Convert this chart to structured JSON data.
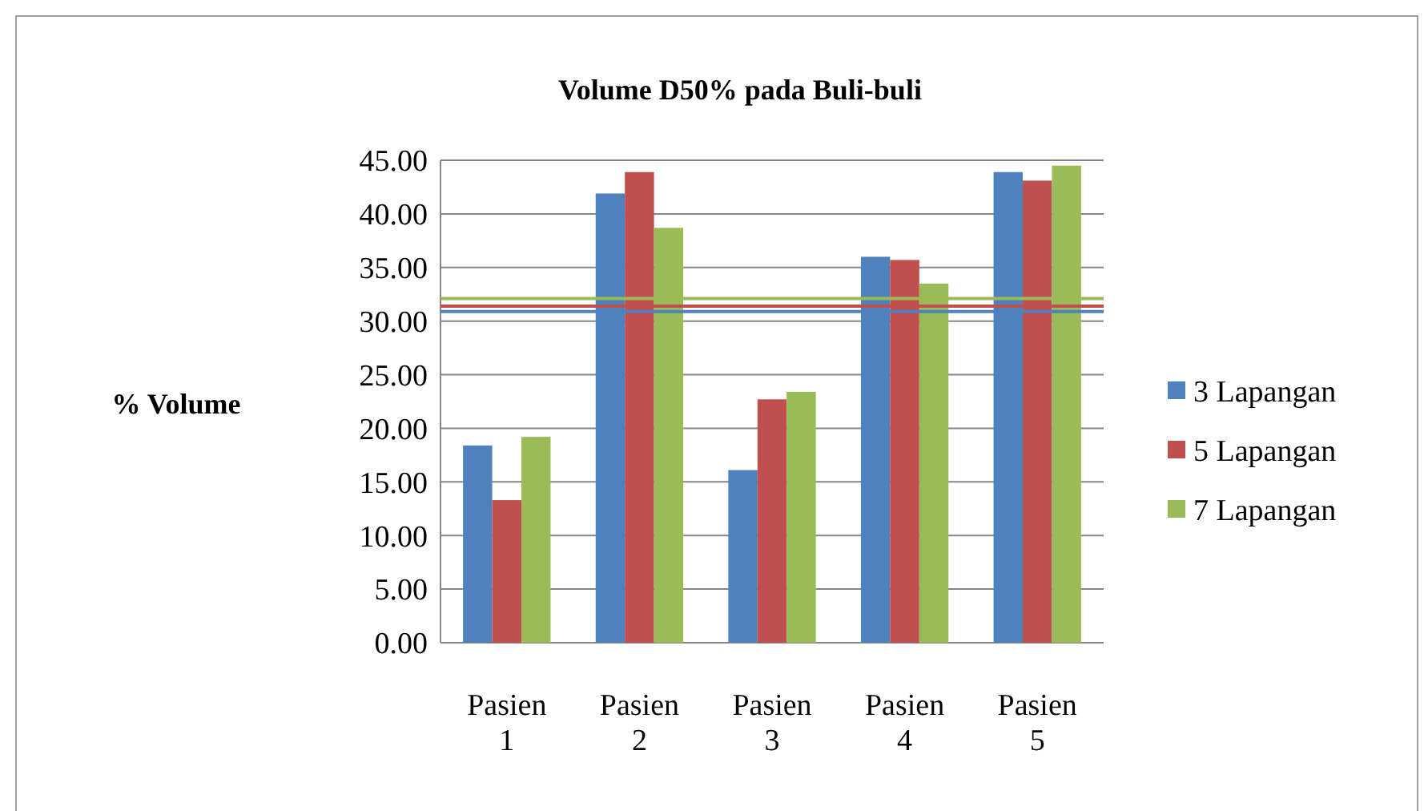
{
  "chart_data": {
    "type": "bar",
    "title": "Volume D50% pada Buli-buli",
    "ylabel": "% Volume",
    "categories": [
      "Pasien 1",
      "Pasien 2",
      "Pasien 3",
      "Pasien 4",
      "Pasien 5"
    ],
    "series": [
      {
        "name": "3 Lapangan",
        "color": "#4f81bd",
        "values": [
          18.4,
          41.9,
          16.1,
          36.0,
          43.9
        ]
      },
      {
        "name": "5 Lapangan",
        "color": "#c0504d",
        "values": [
          13.3,
          43.9,
          22.7,
          35.7,
          43.1
        ]
      },
      {
        "name": "7 Lapangan",
        "color": "#9bbb59",
        "values": [
          19.2,
          38.7,
          23.4,
          33.5,
          44.5
        ]
      }
    ],
    "ylim": [
      0,
      45
    ],
    "yticks": [
      {
        "value": 0,
        "label": "0.00"
      },
      {
        "value": 5,
        "label": "5.00"
      },
      {
        "value": 10,
        "label": "10.00"
      },
      {
        "value": 15,
        "label": "15.00"
      },
      {
        "value": 20,
        "label": "20.00"
      },
      {
        "value": 25,
        "label": "25.00"
      },
      {
        "value": 30,
        "label": "30.00"
      },
      {
        "value": 35,
        "label": "35.00"
      },
      {
        "value": 40,
        "label": "40.00"
      },
      {
        "value": 45,
        "label": "45.00"
      }
    ],
    "ref_lines": [
      {
        "axis": "y",
        "value": 30.9,
        "color": "#4f81bd"
      },
      {
        "axis": "y",
        "value": 31.4,
        "color": "#c0504d"
      },
      {
        "axis": "y",
        "value": 32.1,
        "color": "#9bbb59"
      }
    ],
    "grid": "y",
    "legend": "right"
  }
}
